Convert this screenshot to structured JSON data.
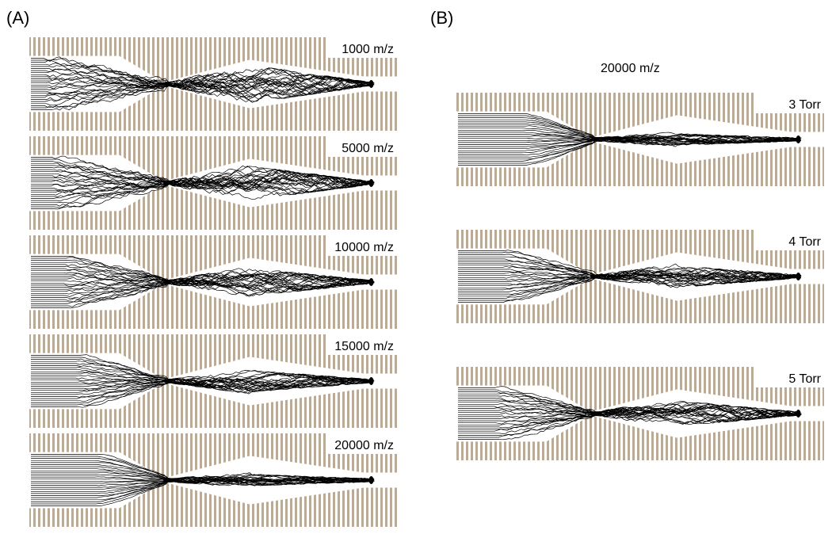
{
  "figure": {
    "panel_a_label": "(A)",
    "panel_b_label": "(B)",
    "panel_b_header": "20000 m/z"
  },
  "panel_a": {
    "simulations": [
      {
        "label": "1000 m/z",
        "spread": 0.85
      },
      {
        "label": "5000 m/z",
        "spread": 0.75
      },
      {
        "label": "10000 m/z",
        "spread": 0.6
      },
      {
        "label": "15000 m/z",
        "spread": 0.45
      },
      {
        "label": "20000 m/z",
        "spread": 0.2
      }
    ]
  },
  "panel_b": {
    "simulations": [
      {
        "label": "3 Torr",
        "spread": 0.2
      },
      {
        "label": "4 Torr",
        "spread": 0.45
      },
      {
        "label": "5 Torr",
        "spread": 0.55
      }
    ]
  },
  "colors": {
    "electrode": "#b9ab97",
    "trajectory": "#000000",
    "background": "#ffffff"
  }
}
